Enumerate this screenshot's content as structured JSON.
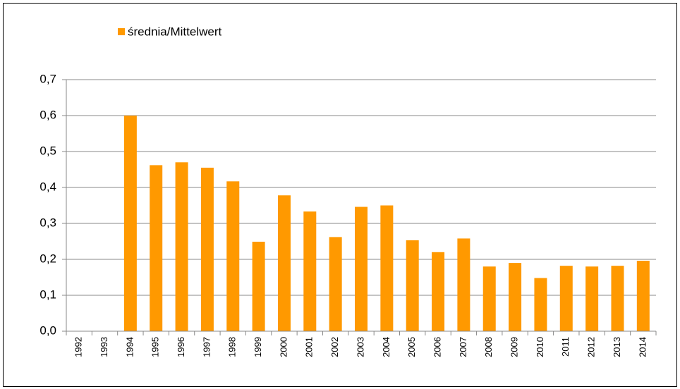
{
  "chart_data": {
    "type": "bar",
    "legend": "średnia/Mittelwert",
    "categories": [
      "1992",
      "1993",
      "1994",
      "1995",
      "1996",
      "1997",
      "1998",
      "1999",
      "2000",
      "2001",
      "2002",
      "2003",
      "2004",
      "2005",
      "2006",
      "2007",
      "2008",
      "2009",
      "2010",
      "2011",
      "2012",
      "2013",
      "2014"
    ],
    "values": [
      null,
      null,
      0.6,
      0.462,
      0.47,
      0.455,
      0.417,
      0.249,
      0.378,
      0.333,
      0.262,
      0.346,
      0.35,
      0.253,
      0.22,
      0.258,
      0.18,
      0.19,
      0.148,
      0.182,
      0.18,
      0.182,
      0.196
    ],
    "color": "#ff9900",
    "ylim": [
      0,
      0.7
    ],
    "yticks": [
      {
        "value": 0,
        "label": "0,0"
      },
      {
        "value": 0.1,
        "label": "0,1"
      },
      {
        "value": 0.2,
        "label": "0,2"
      },
      {
        "value": 0.3,
        "label": "0,3"
      },
      {
        "value": 0.4,
        "label": "0,4"
      },
      {
        "value": 0.5,
        "label": "0,5"
      },
      {
        "value": 0.6,
        "label": "0,6"
      },
      {
        "value": 0.7,
        "label": "0,7"
      }
    ],
    "grid": true
  }
}
